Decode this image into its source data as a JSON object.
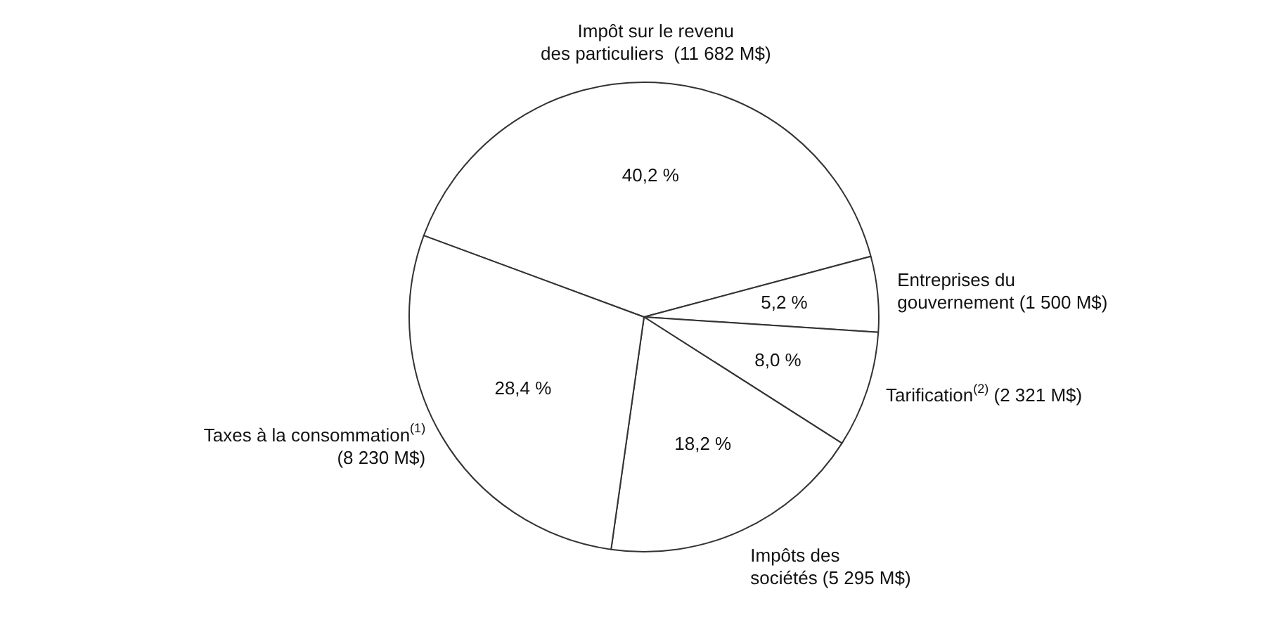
{
  "chart_data": {
    "type": "pie",
    "categories": [
      "Impôt sur le revenu\ndes particuliers  (11 682 M$)",
      "Entreprises du\ngouvernement (1 500 M$)",
      "Tarification$^{(2)}$ (2 321 M$)",
      "Impôts des\nsociétés (5 295 M$)",
      "Taxes à la consommation$^{(1)}$\n(8 230 M$)"
    ],
    "values": [
      40.2,
      5.2,
      8.0,
      18.2,
      28.4
    ],
    "value_labels": [
      "40,2 %",
      "5,2 %",
      "8,0 %",
      "18,2 %",
      "28,4 %"
    ],
    "colors": [
      "#ffffff",
      "#ffffff",
      "#ffffff",
      "#ffffff",
      "#ffffff"
    ]
  }
}
